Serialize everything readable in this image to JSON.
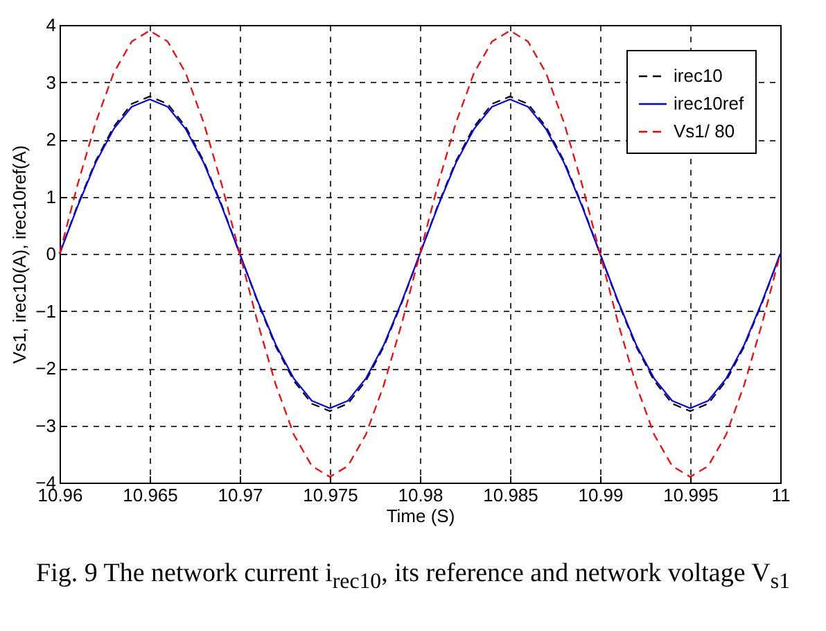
{
  "chart_data": {
    "type": "line",
    "xlabel": "Time (S)",
    "ylabel": "Vs1, irec10(A), irec10ref(A)",
    "annotations": [
      "Fig. 9 The network current i$_{rec10}$, its reference and network voltage V$_{s1}$"
    ],
    "x": [
      10.96,
      10.961,
      10.962,
      10.963,
      10.964,
      10.965,
      10.966,
      10.967,
      10.968,
      10.969,
      10.97,
      10.971,
      10.972,
      10.973,
      10.974,
      10.975,
      10.976,
      10.977,
      10.978,
      10.979,
      10.98,
      10.981,
      10.982,
      10.983,
      10.984,
      10.985,
      10.986,
      10.987,
      10.988,
      10.989,
      10.99,
      10.991,
      10.992,
      10.993,
      10.994,
      10.995,
      10.996,
      10.997,
      10.998,
      10.999,
      11
    ],
    "series": [
      {
        "name": "irec10",
        "color": "#000000",
        "line_style": "dashed",
        "values": [
          0,
          0.85,
          1.62,
          2.22,
          2.62,
          2.75,
          2.62,
          2.22,
          1.62,
          0.85,
          0,
          -0.85,
          -1.62,
          -2.22,
          -2.62,
          -2.75,
          -2.62,
          -2.22,
          -1.62,
          -0.85,
          0,
          0.85,
          1.62,
          2.22,
          2.62,
          2.75,
          2.62,
          2.22,
          1.62,
          0.85,
          0,
          -0.85,
          -1.62,
          -2.22,
          -2.62,
          -2.75,
          -2.62,
          -2.22,
          -1.62,
          -0.85,
          0
        ]
      },
      {
        "name": "irec10ref",
        "color": "#0000ff",
        "line_style": "solid",
        "values": [
          0,
          0.83,
          1.59,
          2.18,
          2.57,
          2.7,
          2.57,
          2.18,
          1.59,
          0.83,
          0,
          -0.83,
          -1.59,
          -2.18,
          -2.57,
          -2.7,
          -2.57,
          -2.18,
          -1.59,
          -0.83,
          0,
          0.83,
          1.59,
          2.18,
          2.57,
          2.7,
          2.57,
          2.18,
          1.59,
          0.83,
          0,
          -0.83,
          -1.59,
          -2.18,
          -2.57,
          -2.7,
          -2.57,
          -2.18,
          -1.59,
          -0.83,
          0
        ]
      },
      {
        "name": "Vs1/ 80",
        "color": "#ff0000",
        "line_style": "dashed",
        "values": [
          0,
          1.21,
          2.29,
          3.16,
          3.71,
          3.9,
          3.71,
          3.16,
          2.29,
          1.21,
          0,
          -1.21,
          -2.29,
          -3.16,
          -3.71,
          -3.9,
          -3.71,
          -3.16,
          -2.29,
          -1.21,
          0,
          1.21,
          2.29,
          3.16,
          3.71,
          3.9,
          3.71,
          3.16,
          2.29,
          1.21,
          0,
          -1.21,
          -2.29,
          -3.16,
          -3.71,
          -3.9,
          -3.71,
          -3.16,
          -2.29,
          -1.21,
          0
        ]
      }
    ],
    "xlim": [
      10.96,
      11
    ],
    "xticks": [
      10.96,
      10.965,
      10.97,
      10.975,
      10.98,
      10.985,
      10.99,
      10.995,
      11
    ],
    "ylim": [
      -4,
      4
    ],
    "yticks": [
      -4,
      -3,
      -2,
      -1,
      0,
      1,
      2,
      3,
      4
    ],
    "grid": true,
    "legend": "top right"
  }
}
